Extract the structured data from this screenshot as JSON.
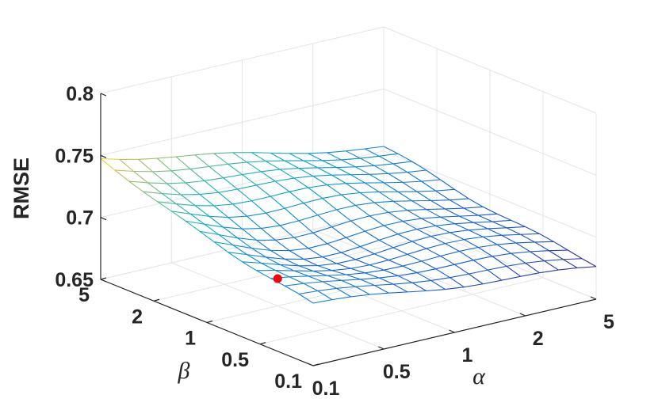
{
  "chart_data": {
    "type": "surface",
    "title": "",
    "zlabel": "RMSE",
    "xlabel": "α",
    "ylabel": "β",
    "x_ticks": [
      "0.1",
      "0.5",
      "1",
      "2",
      "5"
    ],
    "y_ticks": [
      "0.1",
      "0.5",
      "1",
      "2",
      "5"
    ],
    "z_ticks": [
      "0.65",
      "0.7",
      "0.75",
      "0.8"
    ],
    "zlim": [
      0.65,
      0.8
    ],
    "grid": true,
    "colormap": "parula",
    "mesh_resolution": 15,
    "surface_corners": {
      "alpha_min_beta_min": 0.7,
      "alpha_max_beta_min": 0.677,
      "alpha_min_beta_max": 0.75,
      "alpha_max_beta_max": 0.703
    },
    "minimum_point": {
      "alpha": "0.5",
      "beta": "1",
      "rmse": 0.672,
      "color": "#ff0000"
    }
  }
}
